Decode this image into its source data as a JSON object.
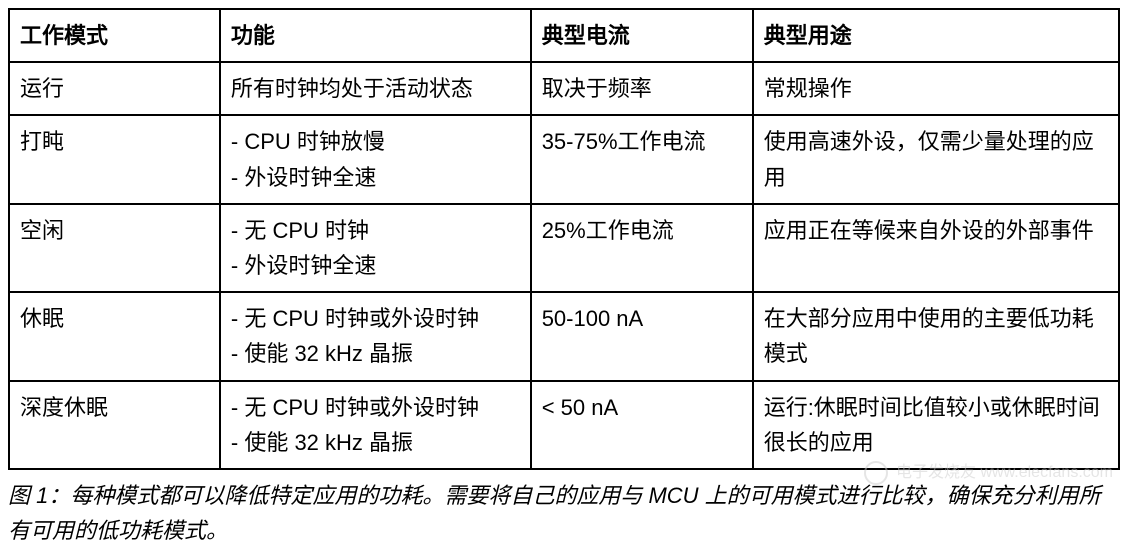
{
  "table": {
    "columns": [
      "工作模式",
      "功能",
      "典型电流",
      "典型用途"
    ],
    "column_widths": [
      "19%",
      "28%",
      "20%",
      "33%"
    ],
    "rows": [
      {
        "mode": "运行",
        "function": "所有时钟均处于活动状态",
        "current": "取决于频率",
        "usage": "常规操作"
      },
      {
        "mode": "打盹",
        "function": "- CPU 时钟放慢\n- 外设时钟全速",
        "current": "35-75%工作电流",
        "usage": "使用高速外设，仅需少量处理的应用"
      },
      {
        "mode": "空闲",
        "function": "- 无 CPU 时钟\n- 外设时钟全速",
        "current": "25%工作电流",
        "usage": "应用正在等候来自外设的外部事件"
      },
      {
        "mode": "休眠",
        "function": "- 无 CPU 时钟或外设时钟\n- 使能 32 kHz 晶振",
        "current": "50-100 nA",
        "usage": "在大部分应用中使用的主要低功耗模式"
      },
      {
        "mode": "深度休眠",
        "function": "- 无 CPU 时钟或外设时钟\n- 使能 32 kHz 晶振",
        "current": "< 50 nA",
        "usage": "运行:休眠时间比值较小或休眠时间很长的应用"
      }
    ],
    "border_color": "#000000",
    "background_color": "#ffffff",
    "font_size": 22,
    "header_font_weight": "bold"
  },
  "caption": {
    "text": "图 1：每种模式都可以降低特定应用的功耗。需要将自己的应用与 MCU 上的可用模式进行比较，确保充分利用所有可用的低功耗模式。",
    "font_style": "italic",
    "font_size": 22
  },
  "watermark": {
    "text": "电子发烧友  www.elecfans.com",
    "color": "#cccccc"
  }
}
